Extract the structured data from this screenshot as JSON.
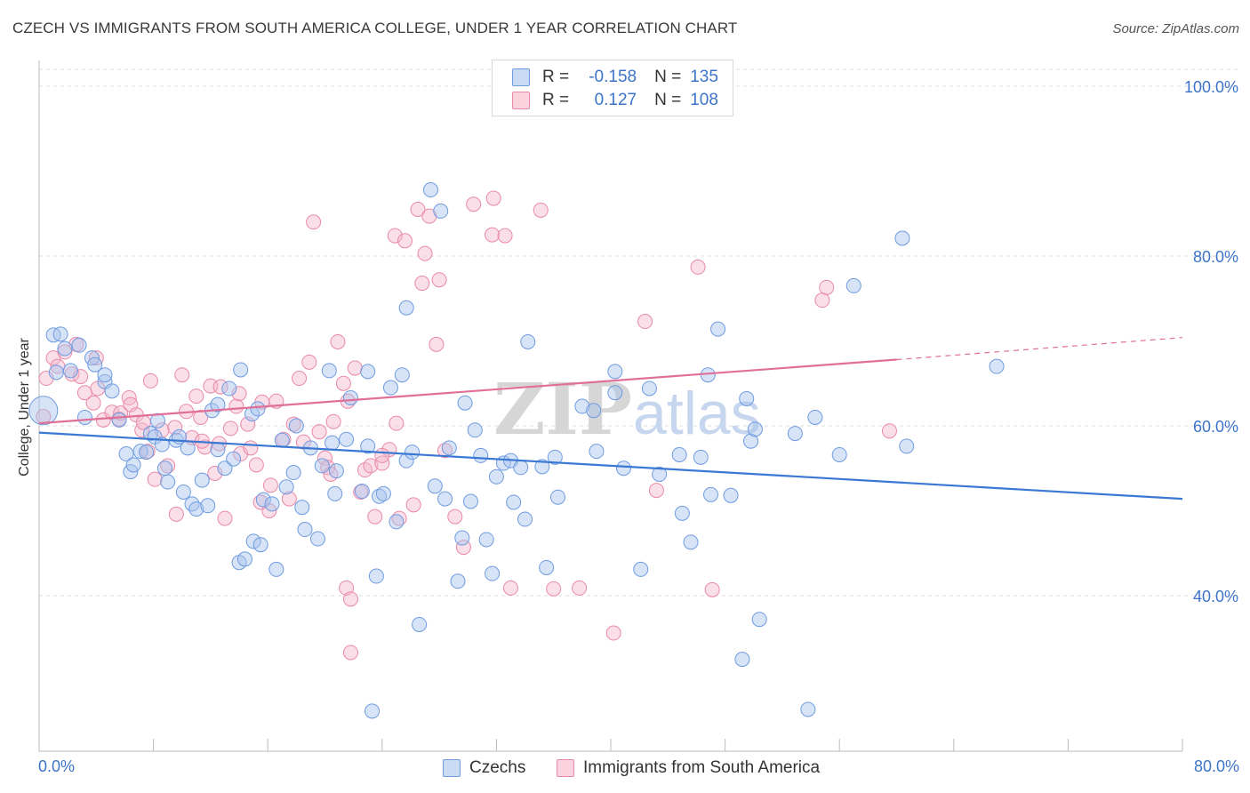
{
  "header": {
    "title": "CZECH VS IMMIGRANTS FROM SOUTH AMERICA COLLEGE, UNDER 1 YEAR CORRELATION CHART",
    "source": "Source: ZipAtlas.com"
  },
  "watermark": "ZIPatlas",
  "legend": {
    "rows": [
      {
        "r_label": "R =",
        "r_value": "-0.158",
        "n_label": "N =",
        "n_value": "135",
        "color": "#a7c4ee"
      },
      {
        "r_label": "R =",
        "r_value": "0.127",
        "n_label": "N =",
        "n_value": "108",
        "color": "#f5b8cb"
      }
    ]
  },
  "bottom_legend": {
    "czechs": "Czechs",
    "immigrants": "Immigrants from South America"
  },
  "colors": {
    "blue_fill": "#a7c4ee",
    "blue_stroke": "#6f9be0",
    "blue_line": "#3a78d4",
    "pink_fill": "#f5b8cb",
    "pink_stroke": "#e98aa8",
    "pink_line": "#e07098",
    "axis_text": "#3d74c9",
    "grid": "#dcdcdc"
  },
  "chart_data": {
    "type": "scatter",
    "title": "CZECH VS IMMIGRANTS FROM SOUTH AMERICA COLLEGE, UNDER 1 YEAR CORRELATION CHART",
    "xlabel": "",
    "ylabel": "College, Under 1 year",
    "xlim": [
      0,
      80
    ],
    "ylim": [
      20,
      105
    ],
    "x_tick_labels": [
      "0.0%",
      "80.0%"
    ],
    "y_ticks": [
      40,
      60,
      80,
      100
    ],
    "y_tick_labels": [
      "40.0%",
      "60.0%",
      "80.0%",
      "100.0%"
    ],
    "grid": true,
    "legend_position": "top-center",
    "series": [
      {
        "name": "Czechs",
        "color": "#a7c4ee",
        "R": -0.158,
        "N": 135,
        "trend": {
          "x": [
            0,
            80
          ],
          "y": [
            59.2,
            51.4
          ]
        },
        "points": [
          [
            0.3,
            61.8
          ],
          [
            1.0,
            70.7
          ],
          [
            1.2,
            66.3
          ],
          [
            1.5,
            70.8
          ],
          [
            1.8,
            69.1
          ],
          [
            2.2,
            66.5
          ],
          [
            2.8,
            69.5
          ],
          [
            3.2,
            61.0
          ],
          [
            3.7,
            68.0
          ],
          [
            3.9,
            67.2
          ],
          [
            4.6,
            65.2
          ],
          [
            4.6,
            66.0
          ],
          [
            5.1,
            64.1
          ],
          [
            5.6,
            60.7
          ],
          [
            6.1,
            56.7
          ],
          [
            6.4,
            54.6
          ],
          [
            6.6,
            55.4
          ],
          [
            7.1,
            57.0
          ],
          [
            7.5,
            56.9
          ],
          [
            7.8,
            59.1
          ],
          [
            8.1,
            58.7
          ],
          [
            8.3,
            60.6
          ],
          [
            8.6,
            57.8
          ],
          [
            8.8,
            55.0
          ],
          [
            9.0,
            53.4
          ],
          [
            9.6,
            58.3
          ],
          [
            9.8,
            58.7
          ],
          [
            10.1,
            52.2
          ],
          [
            10.4,
            57.4
          ],
          [
            10.7,
            50.8
          ],
          [
            11.0,
            50.2
          ],
          [
            11.4,
            53.6
          ],
          [
            11.8,
            50.6
          ],
          [
            12.1,
            61.8
          ],
          [
            12.5,
            62.5
          ],
          [
            12.5,
            57.2
          ],
          [
            13.0,
            55.0
          ],
          [
            13.3,
            64.4
          ],
          [
            13.6,
            56.1
          ],
          [
            14.1,
            66.6
          ],
          [
            14.0,
            43.9
          ],
          [
            14.4,
            44.3
          ],
          [
            14.9,
            61.4
          ],
          [
            15.0,
            46.4
          ],
          [
            15.3,
            62.0
          ],
          [
            15.5,
            46.0
          ],
          [
            15.7,
            51.3
          ],
          [
            16.3,
            50.8
          ],
          [
            16.6,
            43.1
          ],
          [
            17.0,
            58.3
          ],
          [
            17.3,
            52.8
          ],
          [
            17.8,
            54.5
          ],
          [
            18.0,
            60.0
          ],
          [
            18.4,
            50.4
          ],
          [
            18.6,
            47.8
          ],
          [
            19.0,
            57.4
          ],
          [
            19.5,
            46.7
          ],
          [
            19.8,
            55.3
          ],
          [
            20.5,
            58.0
          ],
          [
            20.7,
            52.0
          ],
          [
            20.8,
            54.7
          ],
          [
            21.5,
            58.4
          ],
          [
            21.8,
            63.3
          ],
          [
            22.6,
            52.3
          ],
          [
            23.0,
            57.6
          ],
          [
            23.0,
            66.4
          ],
          [
            23.6,
            42.3
          ],
          [
            23.8,
            51.7
          ],
          [
            24.1,
            52.0
          ],
          [
            24.6,
            64.5
          ],
          [
            25.0,
            48.7
          ],
          [
            25.4,
            66.0
          ],
          [
            25.7,
            55.9
          ],
          [
            25.7,
            73.9
          ],
          [
            26.1,
            56.9
          ],
          [
            26.6,
            36.6
          ],
          [
            27.4,
            87.8
          ],
          [
            27.7,
            52.9
          ],
          [
            28.1,
            85.3
          ],
          [
            28.4,
            51.4
          ],
          [
            28.7,
            57.4
          ],
          [
            29.3,
            41.7
          ],
          [
            29.6,
            46.8
          ],
          [
            29.8,
            62.7
          ],
          [
            30.2,
            51.1
          ],
          [
            30.5,
            59.5
          ],
          [
            30.9,
            56.5
          ],
          [
            31.3,
            46.6
          ],
          [
            31.7,
            42.6
          ],
          [
            32.0,
            54.0
          ],
          [
            32.5,
            55.6
          ],
          [
            33.0,
            55.9
          ],
          [
            33.2,
            51.0
          ],
          [
            33.7,
            55.1
          ],
          [
            34.0,
            49.0
          ],
          [
            34.2,
            69.9
          ],
          [
            35.2,
            55.2
          ],
          [
            35.5,
            43.3
          ],
          [
            36.1,
            56.3
          ],
          [
            36.3,
            51.6
          ],
          [
            38.0,
            62.3
          ],
          [
            38.8,
            61.8
          ],
          [
            39.0,
            57.0
          ],
          [
            40.3,
            66.4
          ],
          [
            40.3,
            63.9
          ],
          [
            40.9,
            55.0
          ],
          [
            42.1,
            43.1
          ],
          [
            42.7,
            64.4
          ],
          [
            43.4,
            54.3
          ],
          [
            45.0,
            49.7
          ],
          [
            44.8,
            56.6
          ],
          [
            45.6,
            46.3
          ],
          [
            47.0,
            51.9
          ],
          [
            47.5,
            71.4
          ],
          [
            48.4,
            51.8
          ],
          [
            49.2,
            32.5
          ],
          [
            49.5,
            63.2
          ],
          [
            49.8,
            58.2
          ],
          [
            50.1,
            59.6
          ],
          [
            50.4,
            37.2
          ],
          [
            52.9,
            59.1
          ],
          [
            53.8,
            26.6
          ],
          [
            54.3,
            61.0
          ],
          [
            56.0,
            56.6
          ],
          [
            57.0,
            76.5
          ],
          [
            60.4,
            82.1
          ],
          [
            60.7,
            57.6
          ],
          [
            67.0,
            67.0
          ],
          [
            23.3,
            26.4
          ],
          [
            46.3,
            56.3
          ],
          [
            46.8,
            66.0
          ],
          [
            20.3,
            66.5
          ]
        ]
      },
      {
        "name": "Immigrants from South America",
        "color": "#f5b8cb",
        "R": 0.127,
        "N": 108,
        "trend": {
          "x": [
            0,
            60
          ],
          "y": [
            60.3,
            67.8
          ]
        },
        "trend_dashed_to": {
          "x": 80,
          "y": 70.4
        },
        "points": [
          [
            0.3,
            61.1
          ],
          [
            0.5,
            65.6
          ],
          [
            1.0,
            68.0
          ],
          [
            1.3,
            67.0
          ],
          [
            1.8,
            68.7
          ],
          [
            2.3,
            66.1
          ],
          [
            2.6,
            69.6
          ],
          [
            2.9,
            65.8
          ],
          [
            3.2,
            63.9
          ],
          [
            3.8,
            62.7
          ],
          [
            4.0,
            68.0
          ],
          [
            4.1,
            64.4
          ],
          [
            4.5,
            60.7
          ],
          [
            5.1,
            61.6
          ],
          [
            5.6,
            60.8
          ],
          [
            5.7,
            61.5
          ],
          [
            6.3,
            63.3
          ],
          [
            6.4,
            62.5
          ],
          [
            6.8,
            61.3
          ],
          [
            7.2,
            59.5
          ],
          [
            7.6,
            57.0
          ],
          [
            7.8,
            65.3
          ],
          [
            8.1,
            53.7
          ],
          [
            8.6,
            59.5
          ],
          [
            9.0,
            55.3
          ],
          [
            9.5,
            59.8
          ],
          [
            9.6,
            49.6
          ],
          [
            10.0,
            66.0
          ],
          [
            10.3,
            61.7
          ],
          [
            10.7,
            58.6
          ],
          [
            11.0,
            63.5
          ],
          [
            11.3,
            61.0
          ],
          [
            11.6,
            57.5
          ],
          [
            12.0,
            64.7
          ],
          [
            12.3,
            54.4
          ],
          [
            12.7,
            64.6
          ],
          [
            13.0,
            49.1
          ],
          [
            13.4,
            59.7
          ],
          [
            13.8,
            62.3
          ],
          [
            14.1,
            56.7
          ],
          [
            14.6,
            60.2
          ],
          [
            14.8,
            57.4
          ],
          [
            15.2,
            55.4
          ],
          [
            15.6,
            62.8
          ],
          [
            16.1,
            50.0
          ],
          [
            16.2,
            53.0
          ],
          [
            16.6,
            62.9
          ],
          [
            17.1,
            58.4
          ],
          [
            17.5,
            51.4
          ],
          [
            17.8,
            60.2
          ],
          [
            18.2,
            65.6
          ],
          [
            18.5,
            58.1
          ],
          [
            18.9,
            67.5
          ],
          [
            19.2,
            84.0
          ],
          [
            19.6,
            59.3
          ],
          [
            20.0,
            56.2
          ],
          [
            20.2,
            55.1
          ],
          [
            20.4,
            54.3
          ],
          [
            20.9,
            69.9
          ],
          [
            21.3,
            65.0
          ],
          [
            21.6,
            62.9
          ],
          [
            22.1,
            66.8
          ],
          [
            22.5,
            52.2
          ],
          [
            22.8,
            54.8
          ],
          [
            23.2,
            55.3
          ],
          [
            23.5,
            49.3
          ],
          [
            24.0,
            55.6
          ],
          [
            24.5,
            57.2
          ],
          [
            24.9,
            82.4
          ],
          [
            25.0,
            60.3
          ],
          [
            25.2,
            49.1
          ],
          [
            25.6,
            81.8
          ],
          [
            26.2,
            50.7
          ],
          [
            26.5,
            85.5
          ],
          [
            26.8,
            76.8
          ],
          [
            27.0,
            80.3
          ],
          [
            27.3,
            84.7
          ],
          [
            27.8,
            69.6
          ],
          [
            28.0,
            77.2
          ],
          [
            28.4,
            57.1
          ],
          [
            29.1,
            49.3
          ],
          [
            29.7,
            45.7
          ],
          [
            30.4,
            86.1
          ],
          [
            31.7,
            82.5
          ],
          [
            31.8,
            86.8
          ],
          [
            32.6,
            82.4
          ],
          [
            33.0,
            40.9
          ],
          [
            35.1,
            85.4
          ],
          [
            36.0,
            40.8
          ],
          [
            37.8,
            40.9
          ],
          [
            40.2,
            35.6
          ],
          [
            41.3,
            100.0
          ],
          [
            42.4,
            72.3
          ],
          [
            43.2,
            52.4
          ],
          [
            46.1,
            78.7
          ],
          [
            47.1,
            40.7
          ],
          [
            54.8,
            74.8
          ],
          [
            55.1,
            76.3
          ],
          [
            59.5,
            59.4
          ],
          [
            21.5,
            40.9
          ],
          [
            21.8,
            39.6
          ],
          [
            21.8,
            33.3
          ],
          [
            14.0,
            63.8
          ],
          [
            11.4,
            58.2
          ],
          [
            24.0,
            56.5
          ],
          [
            7.3,
            60.4
          ],
          [
            12.6,
            57.9
          ],
          [
            15.5,
            51.0
          ],
          [
            20.6,
            60.5
          ]
        ]
      }
    ]
  }
}
